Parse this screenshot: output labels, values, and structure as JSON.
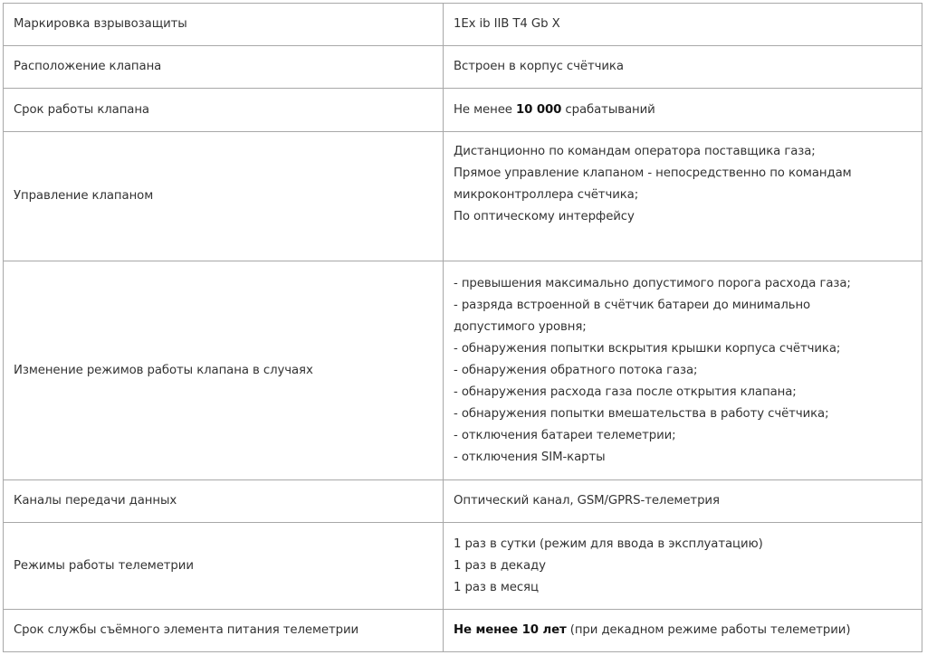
{
  "rows": [
    {
      "label": "Маркировка взрывозащиты",
      "value": [
        "1Ex ib IIB T4 Gb X"
      ]
    },
    {
      "label": "Расположение клапана",
      "value": [
        "Встроен в корпус счётчика"
      ]
    },
    {
      "label": "Срок работы клапана",
      "value_bold": "10 000",
      "value_pre": "Не менее ",
      "value_post": " срабатываний"
    },
    {
      "label": "Управление клапаном",
      "value": [
        "Дистанционно по командам оператора поставщика газа;",
        "Прямое управление клапаном - непосредственно по командам",
        "микроконтроллера счётчика;",
        "По оптическому интерфейсу"
      ]
    },
    {
      "label": "Изменение режимов работы клапана в случаях",
      "value": [
        "- превышения максимально допустимого порога расхода газа;",
        "- разряда встроенной в счётчик батареи до минимально",
        "допустимого уровня;",
        "- обнаружения попытки вскрытия крышки корпуса счётчика;",
        "- обнаружения обратного потока газа;",
        "- обнаружения расхода газа после открытия клапана;",
        "- обнаружения попытки вмешательства в работу счётчика;",
        "- отключения батареи телеметрии;",
        "- отключения SIM-карты"
      ]
    },
    {
      "label": "Каналы передачи данных",
      "value": [
        "Оптический канал, GSM/GPRS-телеметрия"
      ]
    },
    {
      "label": "Режимы работы телеметрии",
      "value": [
        "1 раз в сутки (режим для ввода в эксплуатацию)",
        "1 раз в декаду",
        "1 раз в месяц"
      ]
    },
    {
      "label": "Срок службы съёмного элемента питания телеметрии",
      "value_bold": "Не менее 10 лет",
      "value_pre": "",
      "value_post": " (при декадном режиме работы телеметрии)"
    }
  ]
}
